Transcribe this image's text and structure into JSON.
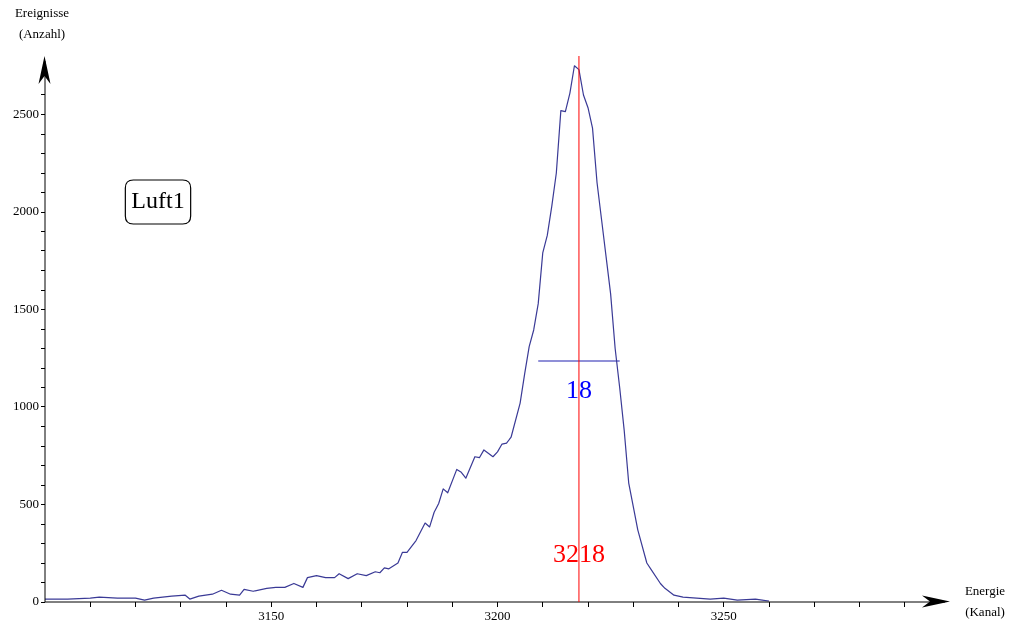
{
  "chart_data": {
    "type": "line",
    "xlabel": "Energie\n(Kanal)",
    "ylabel": "Ereignisse\n(Anzahl)",
    "xlim": [
      3100,
      3300
    ],
    "ylim": [
      0,
      2800
    ],
    "xticks": [
      {
        "value": 3110,
        "label": null
      },
      {
        "value": 3120,
        "label": null
      },
      {
        "value": 3130,
        "label": null
      },
      {
        "value": 3140,
        "label": null
      },
      3150,
      {
        "value": 3160,
        "label": null
      },
      {
        "value": 3170,
        "label": null
      },
      {
        "value": 3180,
        "label": null
      },
      {
        "value": 3190,
        "label": null
      },
      3200,
      {
        "value": 3210,
        "label": null
      },
      {
        "value": 3220,
        "label": null
      },
      {
        "value": 3230,
        "label": null
      },
      {
        "value": 3240,
        "label": null
      },
      3250,
      {
        "value": 3260,
        "label": null
      },
      {
        "value": 3270,
        "label": null
      },
      {
        "value": 3280,
        "label": null
      },
      {
        "value": 3290,
        "label": null
      }
    ],
    "yticks": [
      0,
      {
        "value": 100,
        "label": null
      },
      {
        "value": 200,
        "label": null
      },
      {
        "value": 300,
        "label": null
      },
      {
        "value": 400,
        "label": null
      },
      500,
      {
        "value": 600,
        "label": null
      },
      {
        "value": 700,
        "label": null
      },
      {
        "value": 800,
        "label": null
      },
      {
        "value": 900,
        "label": null
      },
      1000,
      {
        "value": 1100,
        "label": null
      },
      {
        "value": 1200,
        "label": null
      },
      {
        "value": 1300,
        "label": null
      },
      {
        "value": 1400,
        "label": null
      },
      1500,
      {
        "value": 1600,
        "label": null
      },
      {
        "value": 1700,
        "label": null
      },
      {
        "value": 1800,
        "label": null
      },
      {
        "value": 1900,
        "label": null
      },
      2000,
      {
        "value": 2100,
        "label": null
      },
      {
        "value": 2200,
        "label": null
      },
      {
        "value": 2300,
        "label": null
      },
      {
        "value": 2400,
        "label": null
      },
      2500,
      {
        "value": 2600,
        "label": null
      },
      {
        "value": 2700,
        "label": null
      }
    ],
    "grid": false,
    "legend": false,
    "marker": "none",
    "line_style": "solid",
    "series": [
      {
        "color": "#3a3a96",
        "x": [
          3100,
          3105,
          3110,
          3112,
          3116,
          3120,
          3122,
          3124,
          3128,
          3131,
          3132,
          3134,
          3137,
          3139,
          3141,
          3143,
          3144,
          3146,
          3149,
          3151,
          3153,
          3155,
          3157,
          3158,
          3160,
          3162,
          3164,
          3165,
          3167,
          3169,
          3171,
          3173,
          3174,
          3175,
          3176,
          3178,
          3179,
          3180,
          3182,
          3183,
          3184,
          3185,
          3186,
          3187,
          3188,
          3189,
          3191,
          3192,
          3193,
          3195,
          3196,
          3197,
          3199,
          3200,
          3201,
          3202,
          3203,
          3205,
          3206,
          3207,
          3208,
          3209,
          3210,
          3211,
          3212,
          3213,
          3214,
          3215,
          3216,
          3217,
          3218,
          3219,
          3220,
          3221,
          3222,
          3223,
          3224,
          3225,
          3226,
          3227,
          3228,
          3229,
          3231,
          3233,
          3234,
          3236,
          3237,
          3239,
          3241,
          3244,
          3247,
          3250,
          3253,
          3257,
          3260
        ],
        "values": [
          15,
          15,
          20,
          25,
          20,
          20,
          10,
          20,
          30,
          35,
          15,
          30,
          40,
          60,
          40,
          35,
          65,
          55,
          70,
          75,
          75,
          95,
          75,
          125,
          135,
          125,
          125,
          145,
          120,
          145,
          135,
          155,
          150,
          175,
          170,
          200,
          255,
          255,
          315,
          360,
          405,
          385,
          460,
          505,
          580,
          560,
          680,
          665,
          635,
          745,
          740,
          780,
          745,
          770,
          810,
          815,
          845,
          1020,
          1170,
          1310,
          1395,
          1530,
          1790,
          1880,
          2030,
          2200,
          2520,
          2515,
          2610,
          2750,
          2730,
          2600,
          2535,
          2430,
          2150,
          1960,
          1770,
          1580,
          1300,
          1100,
          880,
          610,
          370,
          200,
          165,
          95,
          70,
          35,
          25,
          20,
          15,
          20,
          10,
          15,
          5
        ]
      },
      {
        "color": "#2020b0",
        "x": [
          3209,
          3227
        ],
        "values": [
          1236,
          1236
        ]
      }
    ],
    "ref_lines": [
      {
        "axis": "x",
        "value": 3218,
        "label": "3218",
        "color": "#ff0000"
      }
    ],
    "annotations": [
      "Luft1",
      {
        "text": "18",
        "x": 3218,
        "y": 1080
      }
    ]
  }
}
